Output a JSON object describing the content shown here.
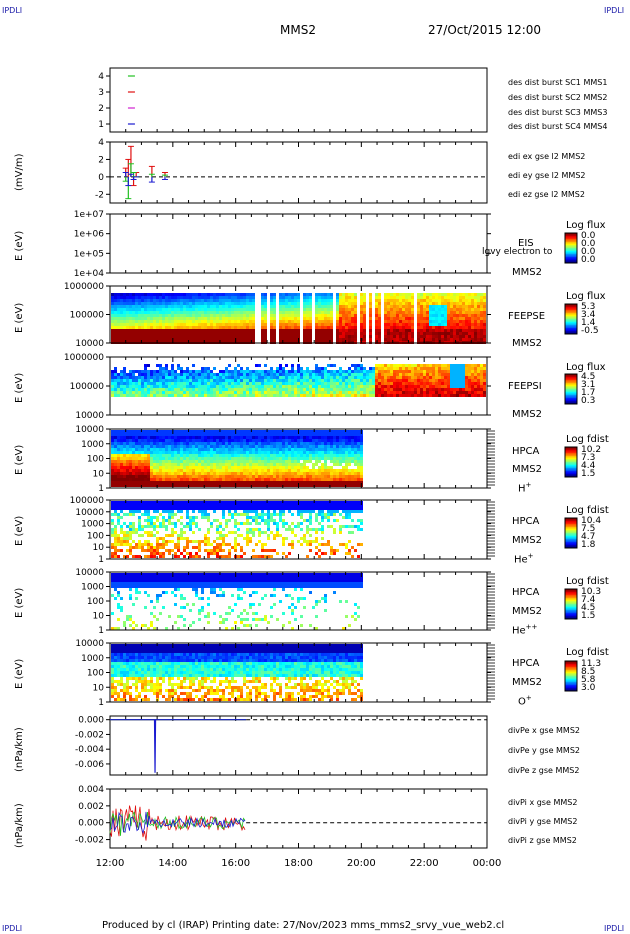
{
  "header": {
    "corner_tl": "IPDLI",
    "corner_tr": "IPDLI",
    "corner_bl": "IPDLI",
    "corner_br": "IPDLI",
    "title": "MMS2",
    "date": "27/Oct/2015 12:00"
  },
  "footer": {
    "text": "Produced by cl (IRAP)   Printing date: 27/Nov/2023   mms_mms2_srvy_vue_web2.cl"
  },
  "xaxis": {
    "ticks": [
      "12:00",
      "14:00",
      "16:00",
      "18:00",
      "20:00",
      "22:00",
      "00:00"
    ]
  },
  "panels": {
    "burst": {
      "yticks": [
        "4",
        "3",
        "2",
        "1"
      ],
      "legend": [
        {
          "text": "des dist burst SC1 MMS1",
          "color": "#1a1ad0"
        },
        {
          "text": "des dist burst SC2 MMS2",
          "color": "#d020d0"
        },
        {
          "text": "des dist burst SC3 MMS3",
          "color": "#e01010"
        },
        {
          "text": "des dist burst SC4 MMS4",
          "color": "#20c020"
        }
      ]
    },
    "edi": {
      "ylabel": "(mV/m)",
      "yticks": [
        "4",
        "2",
        "0",
        "-2"
      ],
      "legend": [
        {
          "text": "edi ex gse l2 MMS2",
          "color": "#e01010"
        },
        {
          "text": "edi ey gse l2 MMS2",
          "color": "#20c020"
        },
        {
          "text": "edi ez gse l2 MMS2",
          "color": "#1a1ad0"
        }
      ]
    },
    "eis": {
      "ylabel": "E (eV)",
      "yticks": [
        "1e+07",
        "1e+06",
        "1e+05",
        "1e+04"
      ],
      "name": "EIS",
      "sc": "MMS2",
      "overlap_text": "lgvy electron to",
      "cbar_title": "Log flux",
      "cbar_ticks": [
        "0.0",
        "0.0",
        "0.0",
        "0.0"
      ]
    },
    "feepse": {
      "ylabel": "E (eV)",
      "yticks": [
        "1000000",
        "100000",
        "10000"
      ],
      "name": "FEEPSE",
      "sc": "MMS2",
      "cbar_title": "Log flux",
      "cbar_ticks": [
        "5.3",
        "3.4",
        "1.4",
        "-0.5"
      ]
    },
    "feepsi": {
      "ylabel": "E (eV)",
      "yticks": [
        "1000000",
        "100000",
        "10000"
      ],
      "name": "FEEPSI",
      "sc": "MMS2",
      "cbar_title": "Log flux",
      "cbar_ticks": [
        "4.5",
        "3.1",
        "1.7",
        "0.3"
      ]
    },
    "hpca_h": {
      "ylabel": "E (eV)",
      "yticks": [
        "10000",
        "1000",
        "100",
        "10",
        "1"
      ],
      "name": "HPCA",
      "sc": "MMS2",
      "species": "H",
      "charge": "+",
      "cbar_title": "Log fdist",
      "cbar_ticks": [
        "10.2",
        "7.3",
        "4.4",
        "1.5"
      ]
    },
    "hpca_he": {
      "ylabel": "E (eV)",
      "yticks": [
        "100000",
        "10000",
        "1000",
        "100",
        "10",
        "1"
      ],
      "name": "HPCA",
      "sc": "MMS2",
      "species": "He",
      "charge": "+",
      "cbar_title": "Log fdist",
      "cbar_ticks": [
        "10.4",
        "7.5",
        "4.7",
        "1.8"
      ]
    },
    "hpca_he2": {
      "ylabel": "E (eV)",
      "yticks": [
        "10000",
        "1000",
        "100",
        "10",
        "1"
      ],
      "name": "HPCA",
      "sc": "MMS2",
      "species": "He",
      "charge": "++",
      "cbar_title": "Log fdist",
      "cbar_ticks": [
        "10.3",
        "7.4",
        "4.5",
        "1.5"
      ]
    },
    "hpca_o": {
      "ylabel": "E (eV)",
      "yticks": [
        "10000",
        "1000",
        "100",
        "10",
        "1"
      ],
      "name": "HPCA",
      "sc": "MMS2",
      "species": "O",
      "charge": "+",
      "cbar_title": "Log fdist",
      "cbar_ticks": [
        "11.3",
        "8.5",
        "5.8",
        "3.0"
      ]
    },
    "divpe": {
      "ylabel": "(nPa/km)",
      "yticks": [
        "0.000",
        "-0.002",
        "-0.004",
        "-0.006"
      ],
      "legend": [
        {
          "text": "divPe x gse MMS2",
          "color": "#e01010"
        },
        {
          "text": "divPe y gse MMS2",
          "color": "#20c020"
        },
        {
          "text": "divPe z gse MMS2",
          "color": "#1a1ad0"
        }
      ]
    },
    "divpi": {
      "ylabel": "(nPa/km)",
      "yticks": [
        "0.004",
        "0.002",
        "0.000",
        "-0.002"
      ],
      "legend": [
        {
          "text": "divPi x gse MMS2",
          "color": "#e01010"
        },
        {
          "text": "divPi y gse MMS2",
          "color": "#20c020"
        },
        {
          "text": "divPi z gse MMS2",
          "color": "#1a1ad0"
        }
      ]
    }
  },
  "chart_data": {
    "type": "multi-panel time series / spectrogram",
    "x_range": [
      "27/Oct/2015 12:00",
      "28/Oct/2015 00:00"
    ],
    "burst": {
      "type": "scatter",
      "ylim": [
        0.5,
        4.5
      ],
      "markers": [
        {
          "sc": 1,
          "t": "12:40",
          "y": 1,
          "color": "#1a1ad0"
        },
        {
          "sc": 2,
          "t": "12:40",
          "y": 2,
          "color": "#d020d0"
        },
        {
          "sc": 3,
          "t": "12:40",
          "y": 3,
          "color": "#e01010"
        },
        {
          "sc": 4,
          "t": "12:40",
          "y": 4,
          "color": "#20c020"
        }
      ]
    },
    "edi": {
      "type": "line",
      "ylim": [
        -3,
        4
      ],
      "series": [
        {
          "name": "edi ex gse l2 MMS2",
          "color": "#e01010",
          "t": [
            "12:30",
            "12:35",
            "12:40",
            "12:45",
            "12:50",
            "13:20",
            "13:45"
          ],
          "y": [
            1.0,
            2.0,
            3.5,
            -1.0,
            0.5,
            1.2,
            0.5
          ]
        },
        {
          "name": "edi ey gse l2 MMS2",
          "color": "#20c020",
          "t": [
            "12:30",
            "12:35",
            "12:40",
            "12:45",
            "12:50",
            "13:20",
            "13:45"
          ],
          "y": [
            -0.5,
            -2.5,
            1.5,
            0.5,
            0.0,
            0.3,
            0.2
          ]
        },
        {
          "name": "edi ez gse l2 MMS2",
          "color": "#1a1ad0",
          "t": [
            "12:30",
            "12:35",
            "12:40",
            "12:45",
            "12:50",
            "13:20",
            "13:45"
          ],
          "y": [
            0.5,
            -1.0,
            0.3,
            -0.3,
            0.0,
            -0.6,
            -0.3
          ]
        }
      ]
    },
    "eis": {
      "type": "heatmap",
      "ylim": [
        "1e+04",
        "1e+07"
      ],
      "data": "none"
    },
    "feepse": {
      "type": "heatmap",
      "ylim": [
        10000,
        1000000
      ],
      "t_range": [
        "12:00",
        "00:00"
      ]
    },
    "feepsi": {
      "type": "heatmap",
      "ylim": [
        10000,
        1000000
      ],
      "t_range": [
        "12:00",
        "00:00"
      ]
    },
    "hpca_h": {
      "type": "heatmap",
      "ylim": [
        1,
        10000
      ],
      "t_range": [
        "12:00",
        "20:00"
      ]
    },
    "hpca_he": {
      "type": "heatmap",
      "ylim": [
        1,
        100000
      ],
      "t_range": [
        "12:00",
        "20:00"
      ]
    },
    "hpca_he2": {
      "type": "heatmap",
      "ylim": [
        1,
        10000
      ],
      "t_range": [
        "12:00",
        "20:00"
      ]
    },
    "hpca_o": {
      "type": "heatmap",
      "ylim": [
        1,
        10000
      ],
      "t_range": [
        "12:00",
        "20:00"
      ]
    },
    "divpe": {
      "type": "line",
      "ylim": [
        -0.0075,
        0.0005
      ],
      "series": [
        {
          "name": "divPe x gse MMS2",
          "color": "#e01010",
          "t": [
            "12:00",
            "16:20"
          ],
          "y": [
            0.0,
            0.0
          ]
        },
        {
          "name": "divPe y gse MMS2",
          "color": "#20c020",
          "t": [
            "12:00",
            "16:20"
          ],
          "y": [
            0.0,
            0.0
          ]
        },
        {
          "name": "divPe z gse MMS2",
          "color": "#1a1ad0",
          "t": [
            "12:00",
            "13:25",
            "13:26",
            "13:27",
            "16:20"
          ],
          "y": [
            0.0,
            0.0,
            -0.0072,
            0.0,
            0.0
          ]
        }
      ]
    },
    "divpi": {
      "type": "line",
      "ylim": [
        -0.003,
        0.004
      ],
      "series": [
        {
          "name": "divPi x gse MMS2",
          "color": "#e01010",
          "t": [
            "12:00",
            "16:20"
          ],
          "y": [
            0.0,
            0.0
          ]
        },
        {
          "name": "divPi y gse MMS2",
          "color": "#20c020",
          "t": [
            "12:00",
            "16:20"
          ],
          "y": [
            0.0,
            0.0
          ]
        },
        {
          "name": "divPi z gse MMS2",
          "color": "#1a1ad0",
          "t": [
            "12:00",
            "16:20"
          ],
          "y": [
            0.0,
            0.0
          ]
        }
      ]
    }
  }
}
